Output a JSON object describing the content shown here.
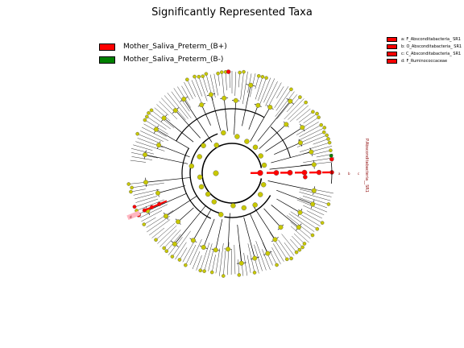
{
  "title": "Significantly Represented Taxa",
  "legend": [
    {
      "label": "Mother_Saliva_Preterm_(B+)",
      "color": "#ff0000"
    },
    {
      "label": "Mother_Saliva_Preterm_(B-)",
      "color": "#008000"
    }
  ],
  "taxa_legend": [
    {
      "label": "a: F_Absconditabacteria_ SR1",
      "color": "#ff0000"
    },
    {
      "label": "b: O_Absconditabacteria_ SR1",
      "color": "#ff0000"
    },
    {
      "label": "c: C_Absconditabacteria_ SR1",
      "color": "#ff0000"
    },
    {
      "label": "d: F_Ruminococcaceae",
      "color": "#ff0000"
    }
  ],
  "clade_label": "P.Absconditabacteria__SR1",
  "clade_letters": [
    "a",
    "b",
    "c"
  ],
  "side_tag": "d",
  "colors": {
    "node": "#c8c800",
    "enriched": "#ff0000",
    "depleted": "#008000",
    "highlight": "#ffb6c1"
  }
}
